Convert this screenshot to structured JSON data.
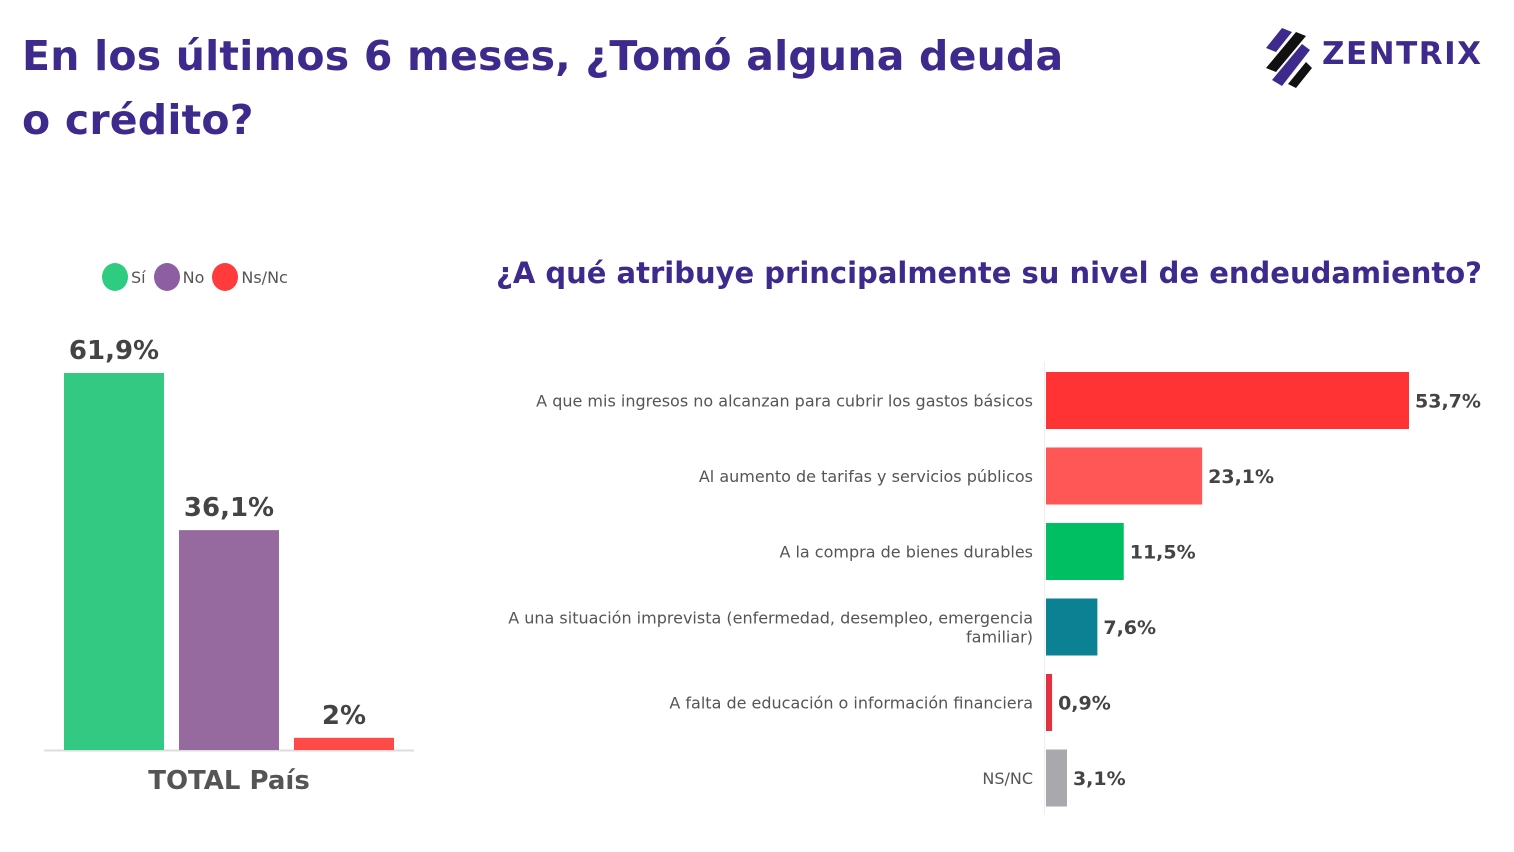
{
  "header": {
    "title": "En los últimos 6 meses, ¿Tomó alguna deuda o crédito?",
    "logo_text": "ZENTRIX"
  },
  "legend": [
    {
      "label": "Sí",
      "color": "#2ecc80"
    },
    {
      "label": "No",
      "color": "#8e5ea2"
    },
    {
      "label": "Ns/Nc",
      "color": "#ff3b3b"
    }
  ],
  "subtitle": "¿A qué atribuye principalmente su nivel de endeudamiento?",
  "chart_data": [
    {
      "type": "bar",
      "orientation": "vertical",
      "categories": [
        "TOTAL País"
      ],
      "series": [
        {
          "name": "Sí",
          "values": [
            61.9
          ],
          "label": "61,9%",
          "color": "#34c983"
        },
        {
          "name": "No",
          "values": [
            36.1
          ],
          "label": "36,1%",
          "color": "#96699f"
        },
        {
          "name": "Ns/Nc",
          "values": [
            2
          ],
          "label": "2%",
          "color": "#ff4a4a"
        }
      ],
      "ylim": [
        0,
        61.9
      ],
      "grid": false,
      "legend": "top-left"
    },
    {
      "type": "bar",
      "orientation": "horizontal",
      "categories": [
        [
          "A que mis ingresos no alcanzan para cubrir los gastos básicos"
        ],
        [
          "Al aumento de tarifas y servicios públicos"
        ],
        [
          "A la compra de bienes durables"
        ],
        [
          "A una situación imprevista (enfermedad, desempleo, emergencia",
          "familiar)"
        ],
        [
          "A falta de educación o información financiera"
        ],
        [
          "NS/NC"
        ]
      ],
      "values": [
        53.7,
        23.1,
        11.5,
        7.6,
        0.9,
        3.1
      ],
      "labels": [
        "53,7%",
        "23,1%",
        "11,5%",
        "7,6%",
        "0,9%",
        "3,1%"
      ],
      "colors": [
        "#ff3333",
        "#ff5656",
        "#00bf63",
        "#0b8193",
        "#e23240",
        "#a9a9ad"
      ],
      "xlim": [
        0,
        53.7
      ],
      "grid": false
    }
  ]
}
